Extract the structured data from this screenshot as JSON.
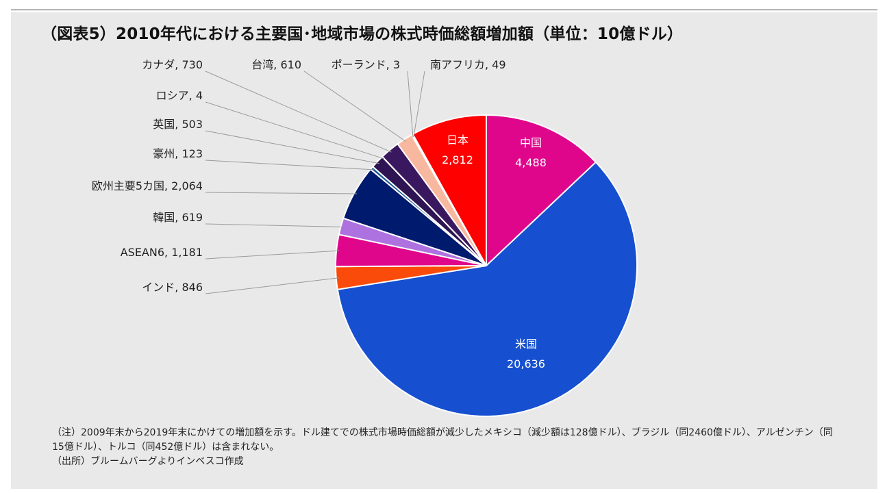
{
  "title": "（図表5）2010年代における主要国･地域市場の株式時価総額増加額（単位：10億ドル）",
  "chart_data": {
    "type": "pie",
    "start_angle_deg": 0,
    "direction": "clockwise",
    "slices": [
      {
        "label": "中国",
        "value": 4488,
        "value_text": "4,488",
        "color": "#e0068c",
        "label_position": "inside",
        "label_color": "#ffffff"
      },
      {
        "label": "米国",
        "value": 20636,
        "value_text": "20,636",
        "color": "#1650d0",
        "label_position": "inside",
        "label_color": "#ffffff"
      },
      {
        "label": "インド",
        "value": 846,
        "value_text": "846",
        "color": "#fb4b0a",
        "label_position": "outside",
        "label_color": "#222222"
      },
      {
        "label": "ASEAN6",
        "value": 1181,
        "value_text": "1,181",
        "color": "#e0068c",
        "label_position": "outside",
        "label_color": "#222222"
      },
      {
        "label": "韓国",
        "value": 619,
        "value_text": "619",
        "color": "#ae72e0",
        "label_position": "outside",
        "label_color": "#222222"
      },
      {
        "label": "欧州主要5カ国",
        "value": 2064,
        "value_text": "2,064",
        "color": "#001a6e",
        "label_position": "outside",
        "label_color": "#222222"
      },
      {
        "label": "豪州",
        "value": 123,
        "value_text": "123",
        "color": "#1a5a95",
        "label_position": "outside",
        "label_color": "#222222"
      },
      {
        "label": "英国",
        "value": 503,
        "value_text": "503",
        "color": "#2e1452",
        "label_position": "outside",
        "label_color": "#222222"
      },
      {
        "label": "ロシア",
        "value": 4,
        "value_text": "4",
        "color": "#4a1a6a",
        "label_position": "outside",
        "label_color": "#222222"
      },
      {
        "label": "カナダ",
        "value": 730,
        "value_text": "730",
        "color": "#3a1860",
        "label_position": "outside",
        "label_color": "#222222"
      },
      {
        "label": "台湾",
        "value": 610,
        "value_text": "610",
        "color": "#f8b8a0",
        "label_position": "outside",
        "label_color": "#222222"
      },
      {
        "label": "ポーランド",
        "value": 3,
        "value_text": "3",
        "color": "#c04a30",
        "label_position": "outside",
        "label_color": "#222222"
      },
      {
        "label": "南アフリカ",
        "value": 49,
        "value_text": "49",
        "color": "#d03050",
        "label_position": "outside",
        "label_color": "#222222"
      },
      {
        "label": "日本",
        "value": 2812,
        "value_text": "2,812",
        "color": "#ff0000",
        "label_position": "inside",
        "label_color": "#ffffff"
      }
    ]
  },
  "notes": [
    "（注）2009年末から2019年末にかけての増加額を示す。ドル建てでの株式市場時価総額が減少したメキシコ（減少額は128億ドル）、ブラジル（同2460億ドル）、アルゼンチン（同15億ドル）、トルコ（同452億ドル）は含まれない。",
    "（出所）ブルームバーグよりインベスコ作成"
  ]
}
